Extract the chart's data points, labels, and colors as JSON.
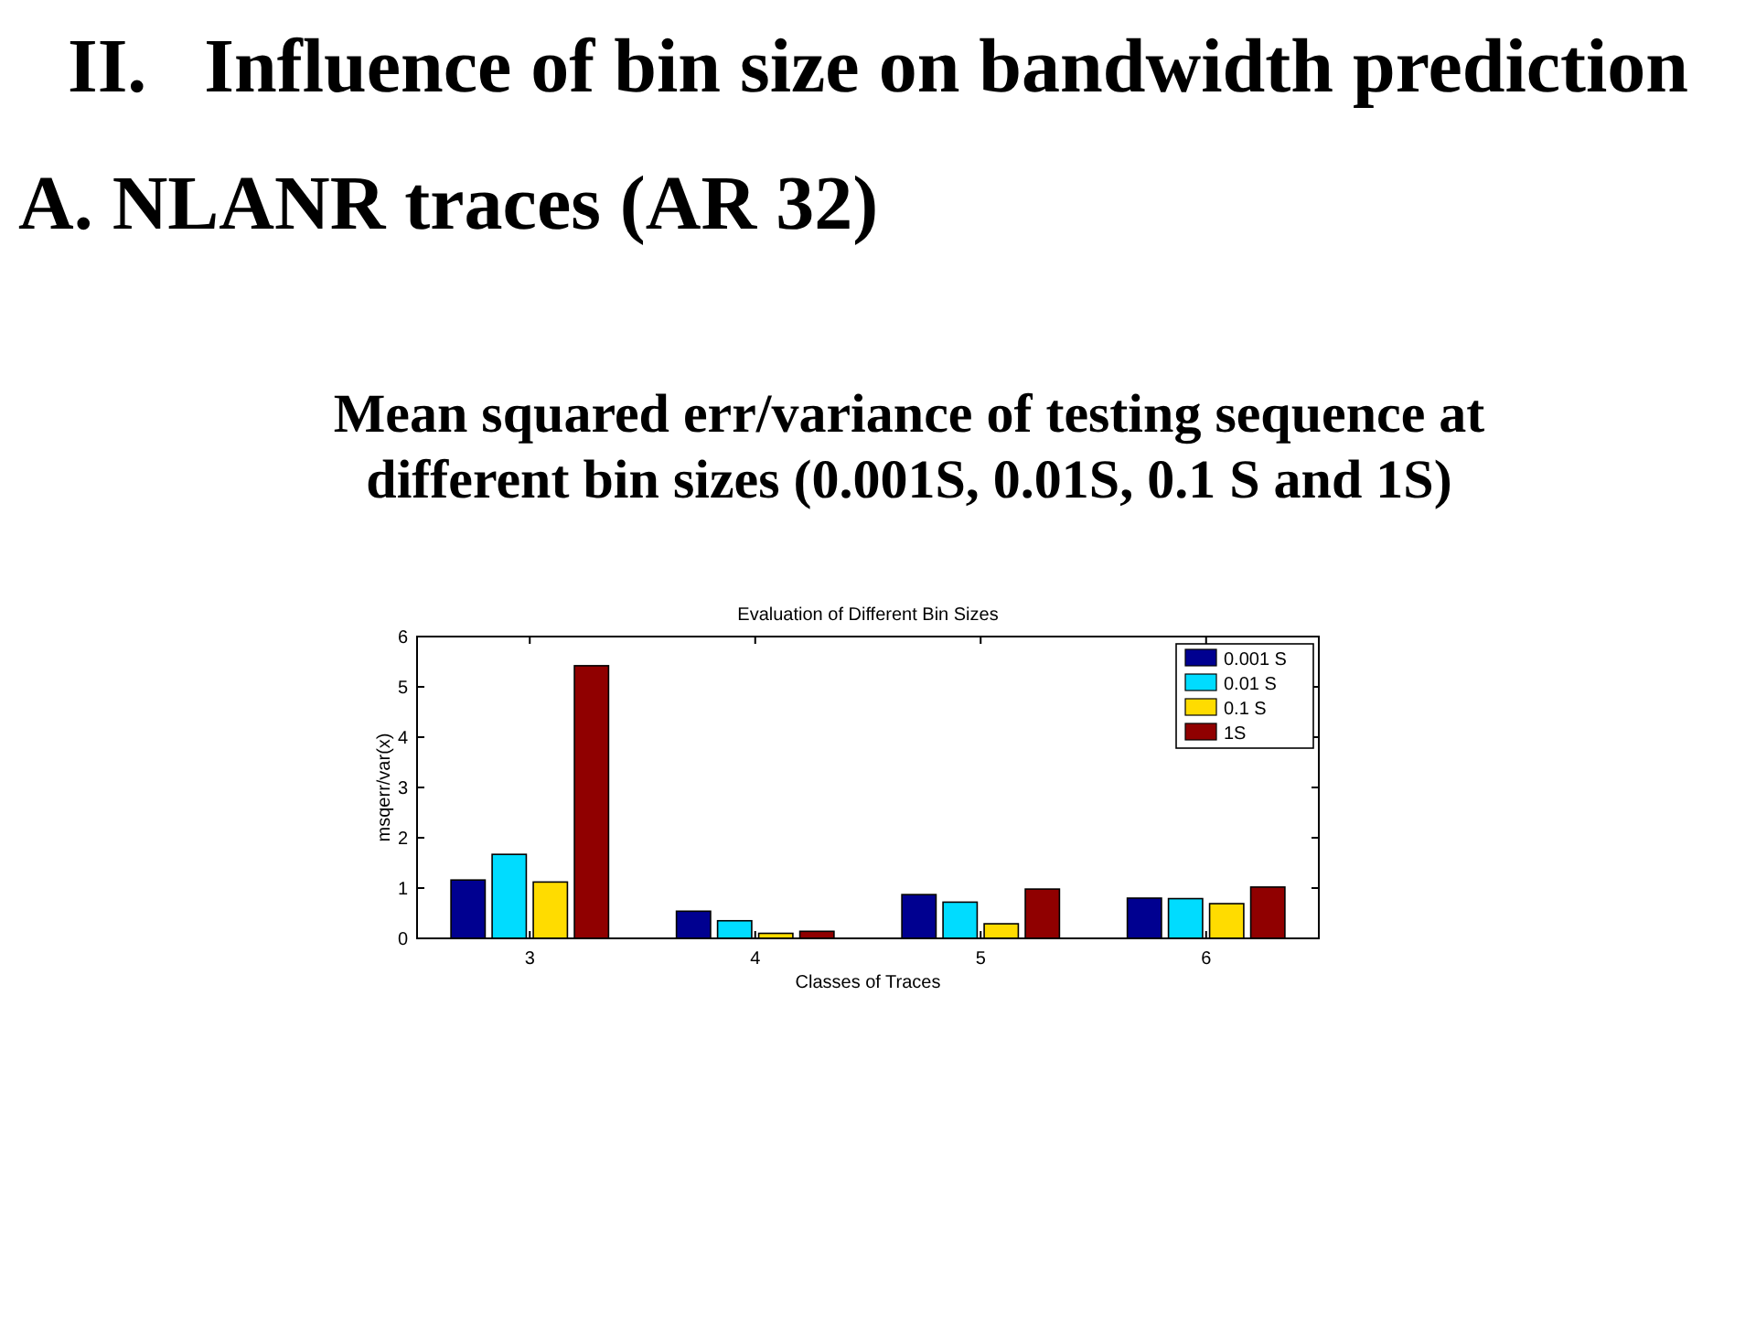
{
  "chart_data": {
    "type": "bar",
    "title": "Evaluation of Different Bin Sizes",
    "xlabel": "Classes of Traces",
    "ylabel": "msqerr/var(x)",
    "annotations": [
      "II.   Influence of bin size on bandwidth prediction",
      "A. NLANR traces (AR 32)",
      "Mean squared err/variance of testing sequence at different bin sizes (0.001S, 0.01S, 0.1 S and 1S)"
    ],
    "categories": [
      "3",
      "4",
      "5",
      "6"
    ],
    "series": [
      {
        "name": "0.001 S",
        "color": "#000090",
        "values": [
          1.16,
          0.54,
          0.87,
          0.8
        ]
      },
      {
        "name": "0.01 S",
        "color": "#00dcff",
        "values": [
          1.67,
          0.35,
          0.72,
          0.79
        ]
      },
      {
        "name": "0.1 S",
        "color": "#ffdc00",
        "values": [
          1.12,
          0.1,
          0.29,
          0.69
        ]
      },
      {
        "name": "1S",
        "color": "#900000",
        "values": [
          5.42,
          0.14,
          0.98,
          1.02
        ]
      }
    ],
    "ylim": [
      0,
      6
    ],
    "yticks": [
      0,
      1,
      2,
      3,
      4,
      5,
      6
    ],
    "legend": "top right"
  }
}
